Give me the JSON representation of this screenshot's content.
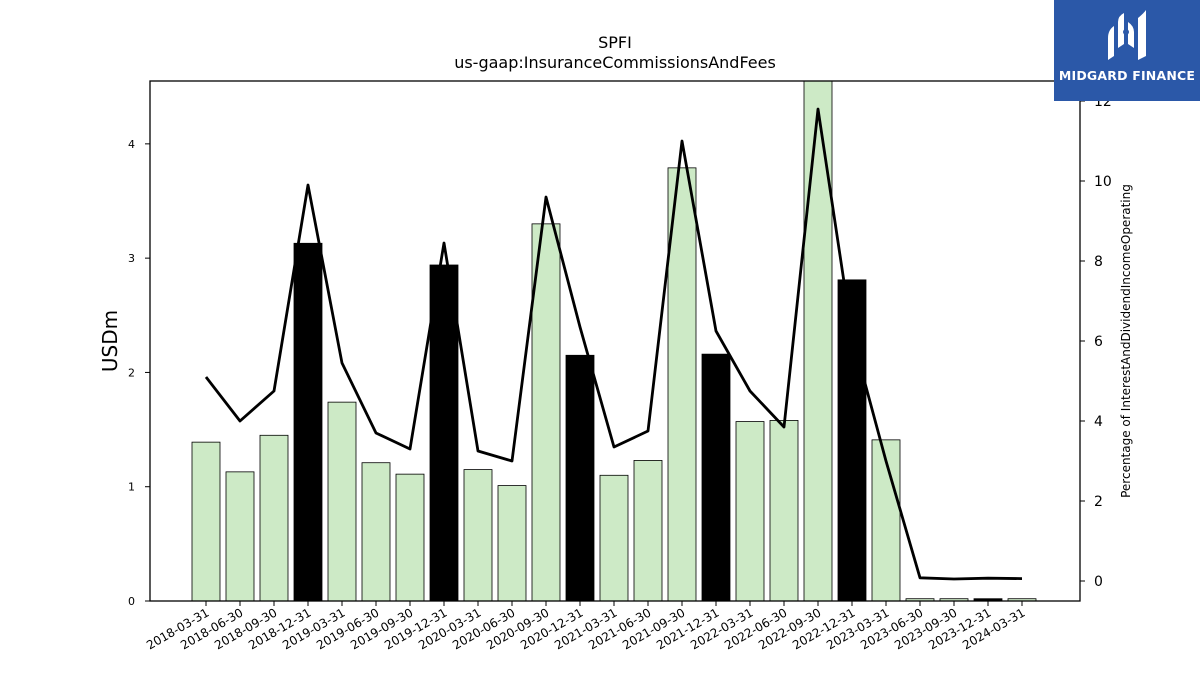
{
  "chart_data": {
    "type": "bar",
    "title": "SPFI",
    "subtitle": "us-gaap:InsuranceCommissionsAndFees",
    "ylabel": "USDm",
    "y2label": "Percentage of InterestAndDividendIncomeOperating",
    "ylim": [
      0,
      4.55
    ],
    "y2lim": [
      -0.5,
      12.5
    ],
    "yticks": [
      0,
      1,
      2,
      3,
      4
    ],
    "y2ticks": [
      0,
      2,
      4,
      6,
      8,
      10,
      12
    ],
    "categories": [
      "2018-03-31",
      "2018-06-30",
      "2018-09-30",
      "2018-12-31",
      "2019-03-31",
      "2019-06-30",
      "2019-09-30",
      "2019-12-31",
      "2020-03-31",
      "2020-06-30",
      "2020-09-30",
      "2020-12-31",
      "2021-03-31",
      "2021-06-30",
      "2021-09-30",
      "2021-12-31",
      "2022-03-31",
      "2022-06-30",
      "2022-09-30",
      "2022-12-31",
      "2023-03-31",
      "2023-06-30",
      "2023-09-30",
      "2023-12-31",
      "2024-03-31"
    ],
    "series": [
      {
        "type": "bar",
        "axis": "left",
        "values": [
          1.39,
          1.13,
          1.45,
          3.13,
          1.74,
          1.21,
          1.11,
          2.94,
          1.15,
          1.01,
          3.3,
          2.15,
          1.1,
          1.23,
          3.79,
          2.16,
          1.57,
          1.58,
          4.6,
          2.81,
          1.41,
          0.02,
          0.02,
          0.02,
          0.02
        ],
        "highlight": [
          false,
          false,
          false,
          true,
          false,
          false,
          false,
          true,
          false,
          false,
          false,
          true,
          false,
          false,
          false,
          true,
          false,
          false,
          false,
          true,
          false,
          false,
          false,
          true,
          false
        ],
        "color": "#cdeac6",
        "highlight_color": "#000000"
      },
      {
        "type": "line",
        "axis": "right",
        "values": [
          5.1,
          4.0,
          4.75,
          9.9,
          5.45,
          3.7,
          3.3,
          8.45,
          3.25,
          3.0,
          9.6,
          6.35,
          3.35,
          3.75,
          11.0,
          6.25,
          4.75,
          3.85,
          11.8,
          6.15,
          3.0,
          0.08,
          0.05,
          0.07,
          0.06
        ],
        "color": "#000000"
      }
    ]
  },
  "logo": {
    "text": "MIDGARD FINANCE",
    "color": "#2b58a8"
  }
}
